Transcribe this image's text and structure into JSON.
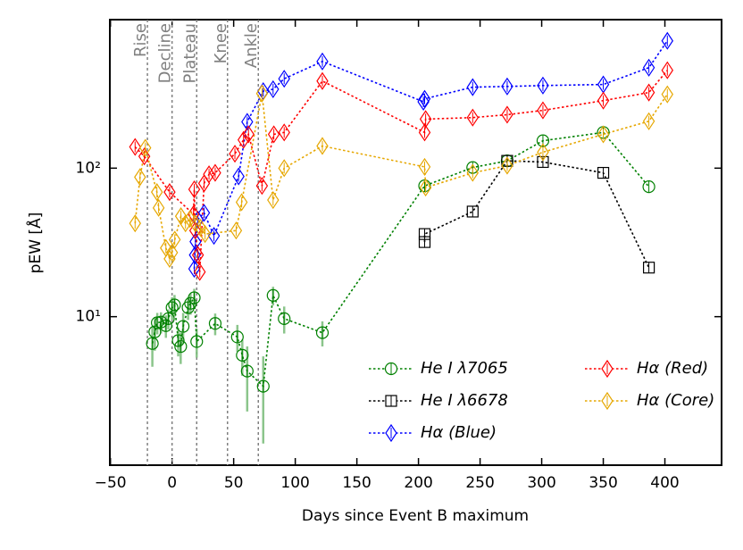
{
  "chart_data": {
    "type": "line",
    "log_y": true,
    "xlabel": "Days since Event B maximum",
    "ylabel": "pEW [Å]",
    "xlim": [
      -50.5,
      446
    ],
    "ylim": [
      1,
      1000
    ],
    "xticks": [
      {
        "value": -50,
        "label": "−50"
      },
      0,
      50,
      100,
      150,
      200,
      250,
      300,
      350,
      400
    ],
    "yticks": [
      {
        "value": 10,
        "label": "10¹"
      },
      {
        "value": 100,
        "label": "10²"
      }
    ],
    "legend": "lower right",
    "phases": [
      {
        "x": -20,
        "label": "Rise"
      },
      {
        "x": 0,
        "label": "Decline"
      },
      {
        "x": 20,
        "label": "Plateau"
      },
      {
        "x": 45,
        "label": "Knee"
      },
      {
        "x": 70,
        "label": "Ankle"
      }
    ],
    "series": [
      {
        "name": "He I λ7065",
        "color": "#008000",
        "marker": "circle",
        "error_color": "#7fbf7f",
        "x": [
          -16,
          -14,
          -12,
          -9,
          -5,
          -3,
          0,
          2,
          5,
          7,
          9,
          13,
          15,
          18,
          20,
          35,
          53,
          57,
          61,
          74,
          82,
          91,
          122,
          205,
          244,
          272,
          301,
          350,
          387
        ],
        "values": [
          6.6,
          7.9,
          9.1,
          9.2,
          8.7,
          9.7,
          11.5,
          12,
          6.9,
          6.3,
          8.6,
          11.5,
          12.3,
          13.4,
          6.8,
          9.0,
          7.3,
          5.5,
          4.3,
          3.4,
          13.9,
          9.7,
          7.8,
          76,
          101,
          112,
          153,
          174,
          75
        ],
        "errors": [
          2,
          2,
          1.5,
          1.5,
          1.5,
          1.5,
          2,
          2,
          1.5,
          1.5,
          2,
          2,
          2,
          2,
          1.5,
          1.5,
          1.5,
          1.5,
          2,
          2,
          2,
          2,
          1.5,
          null,
          null,
          null,
          null,
          null,
          null
        ]
      },
      {
        "name": "He I λ6678",
        "color": "#000000",
        "marker": "square",
        "x": [
          205,
          205,
          244,
          272,
          301,
          350,
          387
        ],
        "values": [
          31.8,
          36,
          51,
          112,
          110,
          93,
          21.4
        ]
      },
      {
        "name": "Hα (Blue)",
        "color": "#0000ff",
        "marker": "diamond",
        "x": [
          18,
          18.5,
          19,
          21,
          26,
          34,
          54,
          61,
          74,
          82,
          91,
          122,
          204,
          205,
          244,
          272,
          301,
          350,
          387,
          402
        ],
        "values": [
          21,
          26,
          32,
          45,
          50,
          35,
          88,
          205,
          330,
          340,
          400,
          523,
          280,
          293,
          351,
          355,
          360,
          366,
          475,
          720
        ]
      },
      {
        "name": "Hα (Red)",
        "color": "#ff0000",
        "marker": "diamond",
        "x": [
          -30,
          -22.5,
          -2,
          17.4,
          18,
          18.8,
          21,
          22.5,
          26,
          30,
          35,
          51,
          58,
          62,
          73,
          82.6,
          91,
          122,
          205,
          205.8,
          244,
          272,
          301,
          350,
          387,
          402
        ],
        "values": [
          139,
          120,
          69,
          49,
          72,
          38,
          26,
          20,
          79,
          91,
          93,
          125,
          155,
          169,
          76,
          169,
          174,
          386,
          174,
          214,
          219,
          229,
          245,
          285,
          323,
          456
        ]
      },
      {
        "name": "Hα (Core)",
        "color": "#e6a700",
        "marker": "diamond",
        "x": [
          -30,
          -26,
          -21.7,
          -12.3,
          -10.9,
          -5,
          -2,
          0,
          2.2,
          7.2,
          10.9,
          14.5,
          18.8,
          23,
          26.8,
          52,
          56.5,
          73,
          82,
          91,
          122,
          205,
          205.8,
          244,
          272,
          301,
          350,
          387,
          402
        ],
        "values": [
          42.5,
          87,
          137,
          69,
          54,
          29,
          24.5,
          27,
          33,
          47.5,
          42.5,
          45.5,
          42.5,
          39.7,
          36,
          38,
          59,
          318,
          61,
          100,
          141,
          102,
          74,
          93,
          104,
          128,
          169,
          207,
          314
        ]
      }
    ]
  }
}
